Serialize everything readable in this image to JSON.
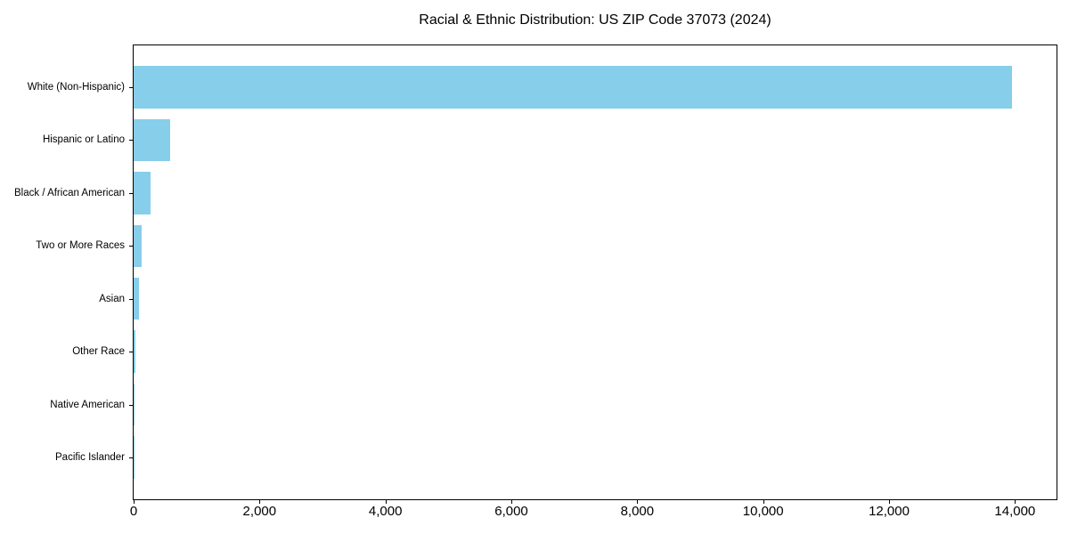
{
  "chart_data": {
    "type": "bar",
    "orientation": "horizontal",
    "title": "Racial & Ethnic Distribution: US ZIP Code 37073 (2024)",
    "categories": [
      "White (Non-Hispanic)",
      "Hispanic or Latino",
      "Black / African American",
      "Two or More Races",
      "Asian",
      "Other Race",
      "Native American",
      "Pacific Islander"
    ],
    "values": [
      13950,
      580,
      265,
      123,
      82,
      25,
      15,
      5
    ],
    "xlabel": "",
    "ylabel": "",
    "xlim": [
      0,
      14660
    ],
    "xticks": [
      0,
      2000,
      4000,
      6000,
      8000,
      10000,
      12000,
      14000
    ],
    "xtick_labels": [
      "0",
      "2,000",
      "4,000",
      "6,000",
      "8,000",
      "10,000",
      "12,000",
      "14,000"
    ],
    "bar_color": "#87CEEB",
    "axis_color": "#000000",
    "background_color": "#ffffff",
    "grid": false,
    "legend": null
  }
}
